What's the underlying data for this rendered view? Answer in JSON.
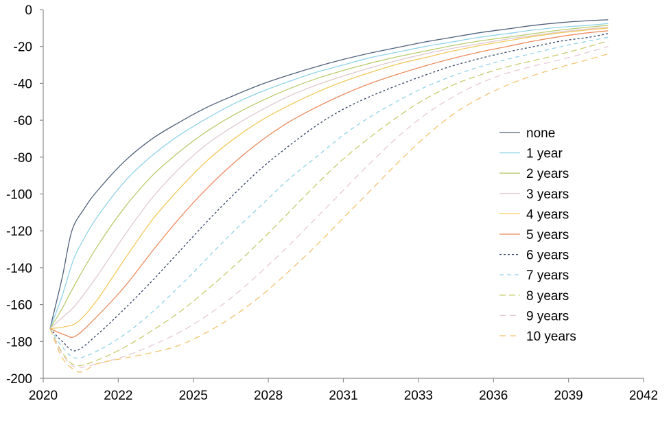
{
  "chart_data": {
    "type": "line",
    "title": "",
    "xlabel": "",
    "ylabel": "",
    "xlim": [
      2020,
      2042
    ],
    "ylim": [
      -200,
      0
    ],
    "x_ticks": [
      "2020",
      "2022",
      "2025",
      "2028",
      "2031",
      "2033",
      "2036",
      "2039",
      "2042"
    ],
    "y_ticks": [
      "0",
      "-20",
      "-40",
      "-60",
      "-80",
      "-100",
      "-120",
      "-140",
      "-160",
      "-180",
      "-200"
    ],
    "legend_position": "right",
    "grid": false,
    "series": [
      {
        "name": "none",
        "color": "#4f5f7a",
        "dash": "solid",
        "points": [
          [
            2020.25,
            -173
          ],
          [
            2020.7,
            -145
          ],
          [
            2021.05,
            -120
          ],
          [
            2021.5,
            -108
          ],
          [
            2022.0,
            -98
          ],
          [
            2023.0,
            -82
          ],
          [
            2024.0,
            -70
          ],
          [
            2025.0,
            -61
          ],
          [
            2026.0,
            -53
          ],
          [
            2027.0,
            -46.5
          ],
          [
            2028.0,
            -40.5
          ],
          [
            2029.0,
            -35.5
          ],
          [
            2030.0,
            -31
          ],
          [
            2031.0,
            -27
          ],
          [
            2032.0,
            -23.5
          ],
          [
            2033.0,
            -20.5
          ],
          [
            2034.0,
            -17.5
          ],
          [
            2035.0,
            -15
          ],
          [
            2036.0,
            -12.5
          ],
          [
            2037.0,
            -10.5
          ],
          [
            2038.0,
            -8.5
          ],
          [
            2039.0,
            -7
          ],
          [
            2040.0,
            -6
          ],
          [
            2040.7,
            -5.5
          ]
        ]
      },
      {
        "name": "1 year",
        "color": "#8fd3e8",
        "dash": "solid",
        "points": [
          [
            2020.25,
            -173
          ],
          [
            2020.7,
            -155
          ],
          [
            2021.1,
            -136
          ],
          [
            2021.5,
            -124
          ],
          [
            2022.0,
            -112
          ],
          [
            2023.0,
            -93
          ],
          [
            2024.0,
            -79
          ],
          [
            2025.0,
            -68
          ],
          [
            2026.0,
            -59
          ],
          [
            2027.0,
            -51
          ],
          [
            2028.0,
            -44.5
          ],
          [
            2029.0,
            -39
          ],
          [
            2030.0,
            -34
          ],
          [
            2031.0,
            -30
          ],
          [
            2032.0,
            -26
          ],
          [
            2033.0,
            -23
          ],
          [
            2034.0,
            -20
          ],
          [
            2035.0,
            -17.5
          ],
          [
            2036.0,
            -15
          ],
          [
            2037.0,
            -13
          ],
          [
            2038.0,
            -11
          ],
          [
            2039.0,
            -9.5
          ],
          [
            2040.0,
            -8.5
          ],
          [
            2040.7,
            -7.5
          ]
        ]
      },
      {
        "name": "2 years",
        "color": "#b9cb6c",
        "dash": "solid",
        "points": [
          [
            2020.25,
            -173
          ],
          [
            2020.7,
            -162
          ],
          [
            2021.2,
            -148
          ],
          [
            2022.0,
            -128
          ],
          [
            2023.0,
            -107
          ],
          [
            2024.0,
            -90
          ],
          [
            2025.0,
            -77
          ],
          [
            2026.0,
            -66
          ],
          [
            2027.0,
            -57
          ],
          [
            2028.0,
            -49.5
          ],
          [
            2029.0,
            -43
          ],
          [
            2030.0,
            -37.5
          ],
          [
            2031.0,
            -33
          ],
          [
            2032.0,
            -29
          ],
          [
            2033.0,
            -25.5
          ],
          [
            2034.0,
            -22.5
          ],
          [
            2035.0,
            -19.5
          ],
          [
            2036.0,
            -17
          ],
          [
            2037.0,
            -15
          ],
          [
            2038.0,
            -13
          ],
          [
            2039.0,
            -11
          ],
          [
            2040.0,
            -9.5
          ],
          [
            2040.7,
            -8.5
          ]
        ]
      },
      {
        "name": "3 years",
        "color": "#e0c8cf",
        "dash": "solid",
        "points": [
          [
            2020.25,
            -173
          ],
          [
            2020.7,
            -167
          ],
          [
            2021.2,
            -160
          ],
          [
            2022.0,
            -144
          ],
          [
            2023.0,
            -122
          ],
          [
            2024.0,
            -102
          ],
          [
            2025.0,
            -86
          ],
          [
            2026.0,
            -73
          ],
          [
            2027.0,
            -63
          ],
          [
            2028.0,
            -54.5
          ],
          [
            2029.0,
            -47
          ],
          [
            2030.0,
            -41
          ],
          [
            2031.0,
            -36
          ],
          [
            2032.0,
            -31.5
          ],
          [
            2033.0,
            -27.5
          ],
          [
            2034.0,
            -24
          ],
          [
            2035.0,
            -21
          ],
          [
            2036.0,
            -18.5
          ],
          [
            2037.0,
            -16
          ],
          [
            2038.0,
            -14
          ],
          [
            2039.0,
            -12
          ],
          [
            2040.0,
            -10.5
          ],
          [
            2040.7,
            -9.5
          ]
        ]
      },
      {
        "name": "4 years",
        "color": "#f2c85a",
        "dash": "solid",
        "points": [
          [
            2020.25,
            -173
          ],
          [
            2020.8,
            -172
          ],
          [
            2021.3,
            -169
          ],
          [
            2022.0,
            -157
          ],
          [
            2023.0,
            -135
          ],
          [
            2024.0,
            -114
          ],
          [
            2025.0,
            -97
          ],
          [
            2026.0,
            -82
          ],
          [
            2027.0,
            -70
          ],
          [
            2028.0,
            -60
          ],
          [
            2029.0,
            -52
          ],
          [
            2030.0,
            -45
          ],
          [
            2031.0,
            -39
          ],
          [
            2032.0,
            -34
          ],
          [
            2033.0,
            -29.5
          ],
          [
            2034.0,
            -26
          ],
          [
            2035.0,
            -22.5
          ],
          [
            2036.0,
            -19.5
          ],
          [
            2037.0,
            -17
          ],
          [
            2038.0,
            -14.5
          ],
          [
            2039.0,
            -12.5
          ],
          [
            2040.0,
            -11
          ],
          [
            2040.7,
            -10
          ]
        ]
      },
      {
        "name": "5 years",
        "color": "#ec8a5c",
        "dash": "solid",
        "points": [
          [
            2020.25,
            -173
          ],
          [
            2020.8,
            -176.5
          ],
          [
            2021.2,
            -177
          ],
          [
            2022.0,
            -166
          ],
          [
            2023.0,
            -150
          ],
          [
            2024.0,
            -131
          ],
          [
            2025.0,
            -113
          ],
          [
            2026.0,
            -97
          ],
          [
            2027.0,
            -83
          ],
          [
            2028.0,
            -71
          ],
          [
            2029.0,
            -61
          ],
          [
            2030.0,
            -53
          ],
          [
            2031.0,
            -46
          ],
          [
            2032.0,
            -40
          ],
          [
            2033.0,
            -35
          ],
          [
            2034.0,
            -30.5
          ],
          [
            2035.0,
            -26.5
          ],
          [
            2036.0,
            -23
          ],
          [
            2037.0,
            -20
          ],
          [
            2038.0,
            -17
          ],
          [
            2039.0,
            -14.5
          ],
          [
            2040.0,
            -12.5
          ],
          [
            2040.7,
            -11.5
          ]
        ]
      },
      {
        "name": "6 years",
        "color": "#2f3f66",
        "dash": "3,3",
        "points": [
          [
            2020.25,
            -173
          ],
          [
            2020.7,
            -180
          ],
          [
            2021.2,
            -185
          ],
          [
            2022.0,
            -176
          ],
          [
            2023.0,
            -162
          ],
          [
            2024.0,
            -147
          ],
          [
            2025.0,
            -131
          ],
          [
            2026.0,
            -115
          ],
          [
            2027.0,
            -100
          ],
          [
            2028.0,
            -86
          ],
          [
            2029.0,
            -74
          ],
          [
            2030.0,
            -63
          ],
          [
            2031.0,
            -54
          ],
          [
            2032.0,
            -47
          ],
          [
            2033.0,
            -41
          ],
          [
            2034.0,
            -35.5
          ],
          [
            2035.0,
            -30.5
          ],
          [
            2036.0,
            -26.5
          ],
          [
            2037.0,
            -23
          ],
          [
            2038.0,
            -20
          ],
          [
            2039.0,
            -17
          ],
          [
            2040.0,
            -15
          ],
          [
            2040.7,
            -13
          ]
        ]
      },
      {
        "name": "7 years",
        "color": "#8fd3e8",
        "dash": "6,5",
        "points": [
          [
            2020.25,
            -173
          ],
          [
            2020.7,
            -183
          ],
          [
            2021.2,
            -189
          ],
          [
            2022.0,
            -185
          ],
          [
            2023.0,
            -176
          ],
          [
            2024.0,
            -164
          ],
          [
            2025.0,
            -150
          ],
          [
            2026.0,
            -135
          ],
          [
            2027.0,
            -120
          ],
          [
            2028.0,
            -106
          ],
          [
            2029.0,
            -92
          ],
          [
            2030.0,
            -80
          ],
          [
            2031.0,
            -68
          ],
          [
            2032.0,
            -58
          ],
          [
            2033.0,
            -49.5
          ],
          [
            2034.0,
            -42
          ],
          [
            2035.0,
            -36
          ],
          [
            2036.0,
            -31
          ],
          [
            2037.0,
            -27
          ],
          [
            2038.0,
            -23.5
          ],
          [
            2039.0,
            -20
          ],
          [
            2040.0,
            -17
          ],
          [
            2040.7,
            -15
          ]
        ]
      },
      {
        "name": "8 years",
        "color": "#c8cc6c",
        "dash": "9,5",
        "points": [
          [
            2020.25,
            -173
          ],
          [
            2020.7,
            -186
          ],
          [
            2021.2,
            -193
          ],
          [
            2022.0,
            -190
          ],
          [
            2023.0,
            -183
          ],
          [
            2024.0,
            -174
          ],
          [
            2025.0,
            -164
          ],
          [
            2026.0,
            -152
          ],
          [
            2027.0,
            -139
          ],
          [
            2028.0,
            -125
          ],
          [
            2029.0,
            -110
          ],
          [
            2030.0,
            -95
          ],
          [
            2031.0,
            -81
          ],
          [
            2032.0,
            -69
          ],
          [
            2033.0,
            -58
          ],
          [
            2034.0,
            -48.5
          ],
          [
            2035.0,
            -41
          ],
          [
            2036.0,
            -35.5
          ],
          [
            2037.0,
            -31
          ],
          [
            2038.0,
            -27.5
          ],
          [
            2039.0,
            -24
          ],
          [
            2040.0,
            -20
          ],
          [
            2040.7,
            -17
          ]
        ]
      },
      {
        "name": "9 years",
        "color": "#e7c9d8",
        "dash": "9,6",
        "points": [
          [
            2020.25,
            -173
          ],
          [
            2020.7,
            -187
          ],
          [
            2021.2,
            -194
          ],
          [
            2022.0,
            -192
          ],
          [
            2023.0,
            -188
          ],
          [
            2024.0,
            -182
          ],
          [
            2025.0,
            -175
          ],
          [
            2026.0,
            -166
          ],
          [
            2027.0,
            -155
          ],
          [
            2028.0,
            -142
          ],
          [
            2029.0,
            -128
          ],
          [
            2030.0,
            -113
          ],
          [
            2031.0,
            -98
          ],
          [
            2032.0,
            -83
          ],
          [
            2033.0,
            -69
          ],
          [
            2034.0,
            -57
          ],
          [
            2035.0,
            -47.5
          ],
          [
            2036.0,
            -40
          ],
          [
            2037.0,
            -34.5
          ],
          [
            2038.0,
            -30.5
          ],
          [
            2039.0,
            -27
          ],
          [
            2040.0,
            -23
          ],
          [
            2040.7,
            -20
          ]
        ]
      },
      {
        "name": "10 years",
        "color": "#f5c36e",
        "dash": "9,6",
        "points": [
          [
            2020.25,
            -173
          ],
          [
            2020.7,
            -189
          ],
          [
            2021.2,
            -196
          ],
          [
            2021.5,
            -196
          ],
          [
            2022.0,
            -192
          ],
          [
            2023.0,
            -189
          ],
          [
            2024.0,
            -186
          ],
          [
            2025.0,
            -182
          ],
          [
            2026.0,
            -175
          ],
          [
            2027.0,
            -166
          ],
          [
            2028.0,
            -155
          ],
          [
            2029.0,
            -142
          ],
          [
            2030.0,
            -128
          ],
          [
            2031.0,
            -113
          ],
          [
            2032.0,
            -98
          ],
          [
            2033.0,
            -83
          ],
          [
            2034.0,
            -69
          ],
          [
            2035.0,
            -57
          ],
          [
            2036.0,
            -48
          ],
          [
            2037.0,
            -41
          ],
          [
            2038.0,
            -35.5
          ],
          [
            2039.0,
            -31
          ],
          [
            2040.0,
            -27
          ],
          [
            2040.7,
            -24
          ]
        ]
      }
    ]
  }
}
